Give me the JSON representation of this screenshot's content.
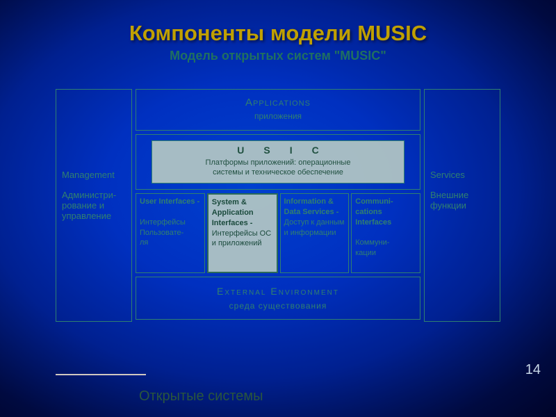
{
  "slide": {
    "title": "Компоненты модели MUSIC",
    "diagram_title": "Модель открытых систем \"MUSIC\"",
    "page_number": "14",
    "footer_text": "Открытые системы"
  },
  "colors": {
    "title": "#c0a000",
    "box_border": "#308070",
    "box_text": "#308070",
    "active_bg": "#b4c8c3",
    "active_text": "#1a4a3c",
    "bg_center": "#0040d0",
    "bg_edge": "#000018"
  },
  "diagram": {
    "left": {
      "title_en": "Management",
      "title_ru": "Администри-\nрование и\nуправление"
    },
    "right": {
      "title_en": "Services",
      "title_ru": "Внешние\nфункции"
    },
    "applications": {
      "heading": "Applications",
      "sub": "приложения"
    },
    "platform": {
      "letters": "USIC",
      "text": "Платформы приложений: операционные\nсистемы и техническое обеспечение"
    },
    "row": [
      {
        "title_en": "User Interfaces -",
        "title_ru": "Интерфейсы Пользовате-\nля",
        "active": false
      },
      {
        "title_en": "System & Application Interfaces -",
        "title_ru": "Интерфейсы ОС и приложений",
        "active": true
      },
      {
        "title_en": "Information & Data Services -",
        "title_ru": "Доступ к данным и информации",
        "active": false
      },
      {
        "title_en": "Communi-\ncations Interfaces",
        "title_ru": "Коммуни-\nкации",
        "active": false
      }
    ],
    "external": {
      "heading": "External Environment",
      "sub": "среда существования"
    }
  }
}
